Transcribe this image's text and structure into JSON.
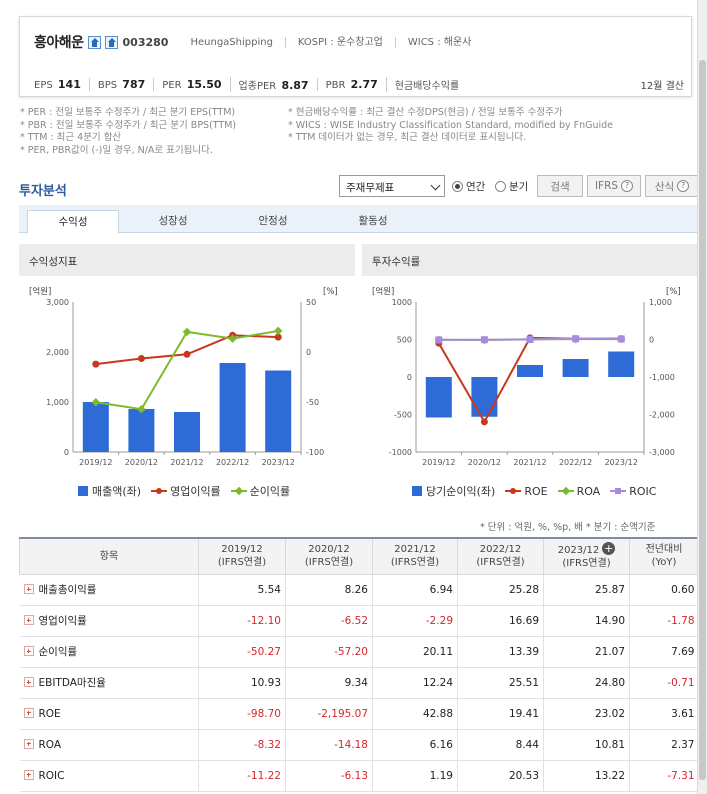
{
  "header": {
    "corp_name": "흥아해운",
    "corp_code": "003280",
    "eng_name": "HeungaShipping",
    "market": "KOSPI : 운수창고업",
    "wics": "WICS : 해운사",
    "metrics": [
      {
        "label": "EPS",
        "value": "141"
      },
      {
        "label": "BPS",
        "value": "787"
      },
      {
        "label": "PER",
        "value": "15.50"
      },
      {
        "label": "업종PER",
        "value": "8.87"
      },
      {
        "label": "PBR",
        "value": "2.77"
      },
      {
        "label": "현금배당수익률",
        "value": ""
      }
    ],
    "month": "12월 결산"
  },
  "notes_left": [
    "* PER : 전일 보통주 수정주가 / 최근 분기 EPS(TTM)",
    "* PBR : 전일 보통주 수정주가 / 최근 분기 BPS(TTM)",
    "* TTM : 최근 4분기 합산",
    "* PER, PBR값이 (-)일 경우, N/A로 표기됩니다."
  ],
  "notes_right": [
    "* 현금배당수익률 : 최근 결산 수정DPS(현금) / 전일 보통주 수정주가",
    "* WICS : WISE Industry Classification Standard, modified by FnGuide",
    "* TTM 데이터가 없는 경우, 최근 결산 데이터로 표시됩니다."
  ],
  "section": {
    "title": "투자분석",
    "select_value": "주재무제표",
    "radio_annual": "연간",
    "radio_quarter": "분기",
    "search_btn": "검색",
    "ifrs_btn": "IFRS",
    "formula_btn": "산식"
  },
  "tabs": [
    "수익성",
    "성장성",
    "안정성",
    "활동성"
  ],
  "panels": {
    "left_title": "수익성지표",
    "right_title": "투자수익률"
  },
  "chart_data": [
    {
      "type": "bar",
      "title": "",
      "categories": [
        "2019/12",
        "2020/12",
        "2021/12",
        "2022/12",
        "2023/12"
      ],
      "y_left_unit": "[억원]",
      "y_right_unit": "[%]",
      "y_left_ticks": [
        "3,000",
        "2,000",
        "1,000",
        "0"
      ],
      "y_right_ticks": [
        "50",
        "0",
        "-50",
        "-100"
      ],
      "y_left_range": [
        0,
        3000
      ],
      "y_right_range": [
        -100,
        50
      ],
      "series": [
        {
          "name": "매출액(좌)",
          "kind": "bar",
          "axis": "left",
          "color": "#2f6bd6",
          "values": [
            1000,
            860,
            800,
            1780,
            1630
          ]
        },
        {
          "name": "영업이익률",
          "kind": "line",
          "axis": "right",
          "marker": "circle",
          "color": "#c8381b",
          "values": [
            -12.1,
            -6.52,
            -2.29,
            16.69,
            14.9
          ]
        },
        {
          "name": "순이익률",
          "kind": "line",
          "axis": "right",
          "marker": "diamond",
          "color": "#7cba2f",
          "values": [
            -50.27,
            -57.2,
            20.11,
            13.39,
            21.07
          ]
        }
      ]
    },
    {
      "type": "bar",
      "title": "",
      "categories": [
        "2019/12",
        "2020/12",
        "2021/12",
        "2022/12",
        "2023/12"
      ],
      "y_left_unit": "[억원]",
      "y_right_unit": "[%]",
      "y_left_ticks": [
        "1000",
        "500",
        "0",
        "-500",
        "-1000"
      ],
      "y_right_ticks": [
        "1,000",
        "0",
        "-1,000",
        "-2,000",
        "-3,000"
      ],
      "y_left_range": [
        -1000,
        1000
      ],
      "y_right_range": [
        -3000,
        1000
      ],
      "series": [
        {
          "name": "당기순이익(좌)",
          "kind": "bar",
          "axis": "left",
          "color": "#2f6bd6",
          "values": [
            -540,
            -530,
            160,
            240,
            340
          ]
        },
        {
          "name": "ROE",
          "kind": "line",
          "axis": "right",
          "marker": "circle",
          "color": "#c8381b",
          "values": [
            -98.7,
            -2195.07,
            42.88,
            19.41,
            23.02
          ]
        },
        {
          "name": "ROA",
          "kind": "line",
          "axis": "right",
          "marker": "diamond",
          "color": "#7cba2f",
          "values": [
            -8.32,
            -14.18,
            6.16,
            8.44,
            10.81
          ]
        },
        {
          "name": "ROIC",
          "kind": "line",
          "axis": "right",
          "marker": "square",
          "color": "#a88be0",
          "values": [
            -11.22,
            -6.13,
            1.19,
            20.53,
            13.22
          ]
        }
      ]
    }
  ],
  "unit_note": "* 단위 : 억원, %, %p, 배     * 분기 : 순액기준",
  "table": {
    "headers": [
      {
        "line1": "항목",
        "line2": ""
      },
      {
        "line1": "2019/12",
        "line2": "(IFRS연결)"
      },
      {
        "line1": "2020/12",
        "line2": "(IFRS연결)"
      },
      {
        "line1": "2021/12",
        "line2": "(IFRS연결)"
      },
      {
        "line1": "2022/12",
        "line2": "(IFRS연결)"
      },
      {
        "line1": "2023/12",
        "line2": "(IFRS연결)"
      },
      {
        "line1": "전년대비",
        "line2": "(YoY)"
      }
    ],
    "rows": [
      {
        "label": "매출총이익률",
        "values": [
          "5.54",
          "8.26",
          "6.94",
          "25.28",
          "25.87",
          "0.60"
        ]
      },
      {
        "label": "영업이익률",
        "values": [
          "-12.10",
          "-6.52",
          "-2.29",
          "16.69",
          "14.90",
          "-1.78"
        ]
      },
      {
        "label": "순이익률",
        "values": [
          "-50.27",
          "-57.20",
          "20.11",
          "13.39",
          "21.07",
          "7.69"
        ]
      },
      {
        "label": "EBITDA마진율",
        "values": [
          "10.93",
          "9.34",
          "12.24",
          "25.51",
          "24.80",
          "-0.71"
        ]
      },
      {
        "label": "ROE",
        "values": [
          "-98.70",
          "-2,195.07",
          "42.88",
          "19.41",
          "23.02",
          "3.61"
        ]
      },
      {
        "label": "ROA",
        "values": [
          "-8.32",
          "-14.18",
          "6.16",
          "8.44",
          "10.81",
          "2.37"
        ]
      },
      {
        "label": "ROIC",
        "values": [
          "-11.22",
          "-6.13",
          "1.19",
          "20.53",
          "13.22",
          "-7.31"
        ]
      }
    ]
  }
}
